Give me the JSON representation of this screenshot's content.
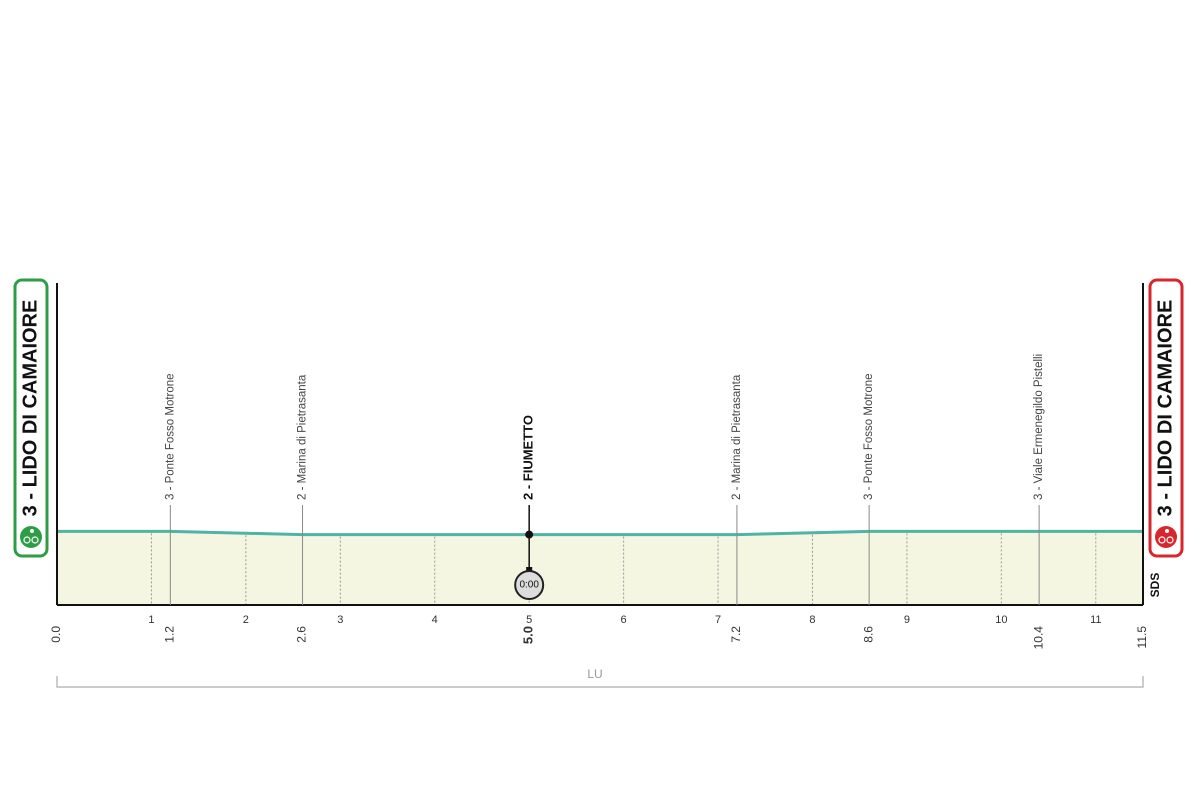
{
  "chart_data": {
    "type": "profile",
    "xlim": [
      0,
      11.5
    ],
    "ylim": [
      -20,
      80
    ],
    "xticks": [
      1,
      2,
      3,
      4,
      5,
      6,
      7,
      8,
      9,
      10,
      11
    ],
    "profile": {
      "x": [
        0,
        1.2,
        2.6,
        5,
        7.2,
        8.6,
        10.4,
        11.5
      ],
      "values": [
        3,
        3,
        2,
        2,
        2,
        3,
        3,
        3
      ],
      "color": "#4fb3a6",
      "fill": "#f4f6e2"
    },
    "start": {
      "km": {
        "value": 0,
        "label": "0.0"
      },
      "label": "3 - LIDO DI CAMAIORE",
      "color": "#2e9e46"
    },
    "finish": {
      "km": 11.5,
      "label": "3 - LIDO DI CAMAIORE",
      "color": "#d7262c"
    },
    "stations": [
      {
        "km": 1.2,
        "label": "3 - Ponte Fosso Motrone"
      },
      {
        "km": 2.6,
        "label": "2 - Marina di Pietrasanta"
      },
      {
        "km": {
          "value": 5,
          "label": "5.0"
        },
        "label": "2 - FIUMETTO",
        "highlight": true
      },
      {
        "km": 7.2,
        "label": "2 - Marina di Pietrasanta"
      },
      {
        "km": 8.6,
        "label": "3 - Ponte Fosso Motrone"
      },
      {
        "km": 10.4,
        "label": "3 - Viale Ermenegildo Pistelli"
      }
    ],
    "timecheck": {
      "km": 5,
      "label": "0:00"
    },
    "province": "LU",
    "logo": "SDS"
  }
}
